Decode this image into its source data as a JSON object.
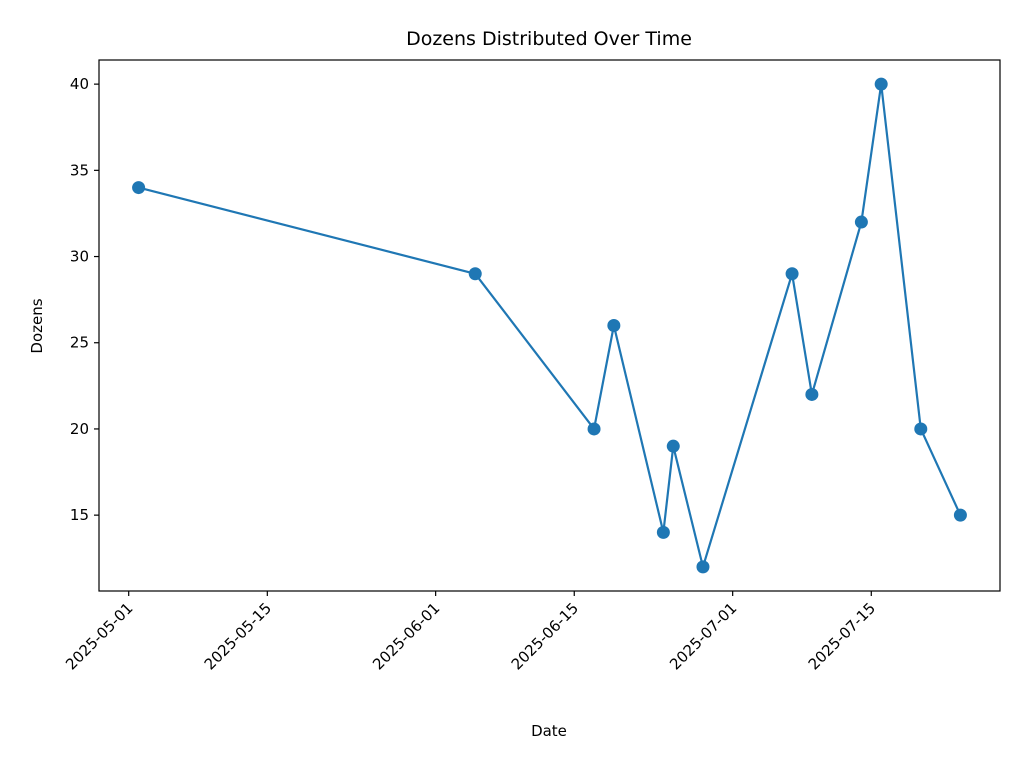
{
  "chart_data": {
    "type": "line",
    "title": "Dozens Distributed Over Time",
    "xlabel": "Date",
    "ylabel": "Dozens",
    "x_ticks": [
      "2025-05-01",
      "2025-05-15",
      "2025-06-01",
      "2025-06-15",
      "2025-07-01",
      "2025-07-15"
    ],
    "y_ticks": [
      15,
      20,
      25,
      30,
      35,
      40
    ],
    "xlim": [
      "2025-04-28",
      "2025-07-28"
    ],
    "ylim": [
      10.6,
      41.4
    ],
    "grid": false,
    "series": [
      {
        "color": "#1f77b4",
        "marker": "circle",
        "points": [
          {
            "x": "2025-05-02",
            "y": 34
          },
          {
            "x": "2025-06-05",
            "y": 29
          },
          {
            "x": "2025-06-17",
            "y": 20
          },
          {
            "x": "2025-06-19",
            "y": 26
          },
          {
            "x": "2025-06-24",
            "y": 14
          },
          {
            "x": "2025-06-25",
            "y": 19
          },
          {
            "x": "2025-06-28",
            "y": 12
          },
          {
            "x": "2025-07-07",
            "y": 29
          },
          {
            "x": "2025-07-09",
            "y": 22
          },
          {
            "x": "2025-07-14",
            "y": 32
          },
          {
            "x": "2025-07-16",
            "y": 40
          },
          {
            "x": "2025-07-20",
            "y": 20
          },
          {
            "x": "2025-07-24",
            "y": 15
          }
        ]
      }
    ]
  }
}
